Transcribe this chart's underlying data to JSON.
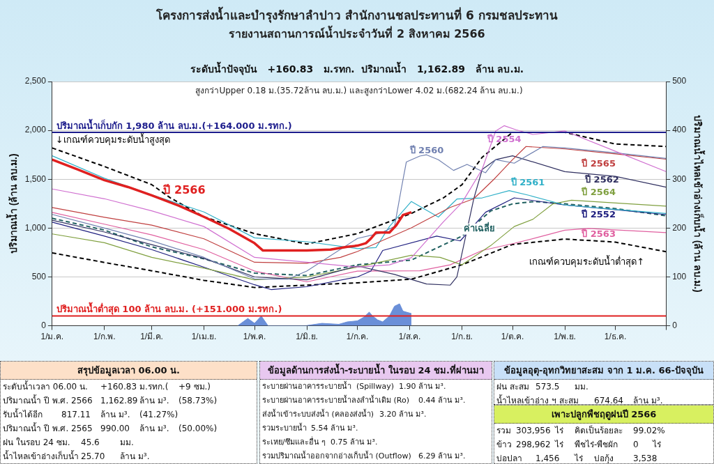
{
  "chart_data": [
    {
      "type": "line",
      "title": "โครงการส่งน้ำและบำรุงรักษาลำปาว สำนักงานชลประทานที่ 6 กรมชลประทาน",
      "subtitle": "รายงานสถานการณ์น้ำประจำวันที่ 2 สิงหาคม 2566",
      "ylabel": "ปริมาณน้ำ (ล้าน ลบ.ม.)",
      "y2label": "ปริมาณน้ำไหลเข้าอ่างเก็บน้ำ (ล้าน ลบ.ม.)",
      "annotations": [
        "ระดับน้ำปัจจุบัน   +160.83   ม.รทก.  ปริมาณน้ำ   1,162.89   ล้าน ลบ.ม.",
        "สูงกว่าUpper 0.18 ม.(35.72ล้าน ลบ.ม.) และสูงกว่าLower 4.02 ม.(682.24 ล้าน ลบ.ม.)"
      ],
      "xlim": [
        "--01-01",
        "--12-31"
      ],
      "xticks": [
        {
          "value": "--01-01",
          "label": "1/ม.ค."
        },
        {
          "value": "--02-01",
          "label": "1/ก.พ."
        },
        {
          "value": "--03-01",
          "label": "1/มี.ค."
        },
        {
          "value": "--04-01",
          "label": "1/เม.ย."
        },
        {
          "value": "--05-01",
          "label": "1/พ.ค."
        },
        {
          "value": "--06-01",
          "label": "1/มิ.ย."
        },
        {
          "value": "--07-01",
          "label": "1/ก.ค."
        },
        {
          "value": "--08-01",
          "label": "1/ส.ค."
        },
        {
          "value": "--09-01",
          "label": "1/ก.ย."
        },
        {
          "value": "--10-01",
          "label": "1/ต.ค."
        },
        {
          "value": "--11-01",
          "label": "1/พ.ย."
        },
        {
          "value": "--12-01",
          "label": "1/ธ.ค."
        },
        {
          "value": "--12-31",
          "label": null
        }
      ],
      "ylim": [
        0,
        2500
      ],
      "yticks": [
        0,
        500,
        {
          "value": 1000,
          "label": "1,000"
        },
        {
          "value": 1500,
          "label": "1,500"
        },
        {
          "value": 2000,
          "label": "2,000"
        },
        {
          "value": 2500,
          "label": "2,500"
        }
      ],
      "y2lim": [
        0,
        500
      ],
      "y2ticks": [
        0,
        100,
        200,
        300,
        400,
        500
      ],
      "grid": "y",
      "legend": false,
      "ref_lines": [
        {
          "axis": "y",
          "value": 1980,
          "label": "ปริมาณน้ำเก็บกัก 1,980 ล้าน ลบ.ม.(+164.000 ม.รทก.)",
          "color": "#1c1c8c"
        },
        {
          "axis": "y",
          "value": 100,
          "label": "ปริมาณน้ำต่ำสุด 100 ล้าน ลบ.ม. (+151.000 ม.รทก.)",
          "color": "#e02020"
        }
      ],
      "series": [
        {
          "name": "ปี 2566",
          "color": "#e02020",
          "x": [
            "--01-01",
            "--01-16",
            "--02-01",
            "--02-15",
            "--03-01",
            "--03-17",
            "--04-01",
            "--04-16",
            "--05-01",
            "--05-06",
            "--05-21",
            "--06-01",
            "--06-15",
            "--06-25",
            "--07-01",
            "--07-06",
            "--07-09",
            "--07-12",
            "--07-20",
            "--07-24",
            "--07-28",
            "--08-02"
          ],
          "values": [
            1700,
            1600,
            1490,
            1420,
            1335,
            1230,
            1115,
            992,
            845,
            770,
            770,
            770,
            780,
            808,
            820,
            845,
            893,
            954,
            954,
            1028,
            1133,
            1162
          ]
        },
        {
          "name": "ปี 2554",
          "color": "#d070d0",
          "x": [
            "--01-01",
            "--02-01",
            "--03-01",
            "--04-01",
            "--05-01",
            "--06-01",
            "--07-01",
            "--07-20",
            "--08-02",
            "--08-21",
            "--09-01",
            "--09-13",
            "--09-21",
            "--09-26",
            "--10-03",
            "--10-13",
            "--11-01",
            "--12-01",
            "--12-31"
          ],
          "values": [
            1400,
            1300,
            1176,
            1016,
            700,
            650,
            600,
            624,
            697,
            1064,
            1260,
            1603,
            1994,
            2048,
            2006,
            1958,
            1994,
            1786,
            1578
          ]
        },
        {
          "name": "ปี 2560",
          "color": "#7080b0",
          "x": [
            "--01-01",
            "--02-01",
            "--03-01",
            "--04-01",
            "--05-01",
            "--05-21",
            "--06-01",
            "--07-01",
            "--07-15",
            "--07-23",
            "--07-27",
            "--07-30",
            "--08-07",
            "--08-11",
            "--08-18",
            "--08-27",
            "--09-04",
            "--09-15",
            "--09-21",
            "--10-02",
            "--10-19",
            "--11-01",
            "--12-01",
            "--12-31"
          ],
          "values": [
            1140,
            1000,
            870,
            700,
            480,
            478,
            560,
            894,
            950,
            1016,
            1400,
            1676,
            1737,
            1750,
            1700,
            1590,
            1652,
            1566,
            1700,
            1664,
            1835,
            1820,
            1770,
            1713
          ]
        },
        {
          "name": "ปี 2565",
          "color": "#c04040",
          "x": [
            "--01-01",
            "--02-01",
            "--03-01",
            "--04-01",
            "--05-01",
            "--06-01",
            "--06-21",
            "--07-01",
            "--08-02",
            "--08-25",
            "--09-08",
            "--09-20",
            "--10-01",
            "--10-09",
            "--11-01",
            "--12-01",
            "--12-31"
          ],
          "values": [
            1210,
            1110,
            1030,
            890,
            650,
            640,
            700,
            760,
            1003,
            1211,
            1300,
            1500,
            1700,
            1835,
            1810,
            1760,
            1705
          ]
        },
        {
          "name": "ปี 2562",
          "color": "#303060",
          "x": [
            "--01-01",
            "--02-01",
            "--03-01",
            "--04-01",
            "--05-01",
            "--06-01",
            "--07-01",
            "--07-23",
            "--08-11",
            "--08-25",
            "--08-29",
            "--09-03",
            "--09-08",
            "--09-13",
            "--09-21",
            "--10-01",
            "--11-01",
            "--12-01",
            "--12-31"
          ],
          "values": [
            1080,
            960,
            830,
            690,
            500,
            470,
            612,
            526,
            428,
            416,
            500,
            900,
            1300,
            1600,
            1700,
            1740,
            1578,
            1529,
            1419
          ]
        },
        {
          "name": "ปี 2561",
          "color": "#30b0c8",
          "x": [
            "--01-01",
            "--02-01",
            "--03-01",
            "--04-01",
            "--05-01",
            "--06-01",
            "--07-01",
            "--07-12",
            "--07-20",
            "--08-02",
            "--08-18",
            "--08-29",
            "--09-13",
            "--09-29",
            "--10-11",
            "--11-01",
            "--12-01",
            "--12-31"
          ],
          "values": [
            1740,
            1510,
            1340,
            1165,
            900,
            860,
            790,
            800,
            1016,
            1272,
            1113,
            1297,
            1309,
            1383,
            1334,
            1236,
            1190,
            1150
          ]
        },
        {
          "name": "ปี 2564",
          "color": "#80a040",
          "x": [
            "--01-01",
            "--02-01",
            "--03-01",
            "--04-01",
            "--05-01",
            "--06-01",
            "--07-01",
            "--08-02",
            "--08-19",
            "--09-01",
            "--09-18",
            "--10-02",
            "--10-13",
            "--10-25",
            "--11-05",
            "--12-31"
          ],
          "values": [
            940,
            850,
            700,
            590,
            470,
            500,
            600,
            722,
            700,
            624,
            820,
            1016,
            1089,
            1248,
            1285,
            1224
          ]
        },
        {
          "name": "ปี 2552",
          "color": "#202080",
          "x": [
            "--01-01",
            "--02-01",
            "--03-01",
            "--04-01",
            "--05-01",
            "--05-11",
            "--06-01",
            "--07-01",
            "--07-09",
            "--07-16",
            "--08-17",
            "--08-31",
            "--09-15",
            "--10-02",
            "--11-01",
            "--12-31"
          ],
          "values": [
            1060,
            918,
            780,
            600,
            420,
            370,
            400,
            500,
            560,
            771,
            918,
            869,
            1162,
            1309,
            1236,
            1138
          ]
        },
        {
          "name": "ปี 2563",
          "color": "#e060a0",
          "x": [
            "--01-01",
            "--02-01",
            "--03-01",
            "--04-01",
            "--05-01",
            "--06-01",
            "--07-01",
            "--08-07",
            "--08-25",
            "--09-13",
            "--10-02",
            "--10-16",
            "--11-01",
            "--11-15",
            "--12-31"
          ],
          "values": [
            1160,
            1040,
            930,
            780,
            560,
            450,
            560,
            563,
            624,
            771,
            844,
            905,
            979,
            996,
            954
          ]
        },
        {
          "name": "ค่าเฉลี่ย",
          "color": "#206060",
          "line_style": "dashed",
          "x": [
            "--01-01",
            "--02-01",
            "--03-01",
            "--04-01",
            "--05-01",
            "--06-01",
            "--07-01",
            "--08-02",
            "--09-01",
            "--09-18",
            "--10-01",
            "--10-14",
            "--11-01",
            "--12-01",
            "--12-31"
          ],
          "values": [
            1100,
            979,
            808,
            685,
            539,
            514,
            624,
            673,
            918,
            1175,
            1248,
            1272,
            1248,
            1199,
            1126
          ]
        },
        {
          "name": "↓เกณฑ์ควบคุมระดับน้ำสูงสุด",
          "color": "#000000",
          "line_style": "dashed",
          "x": [
            "--01-01",
            "--02-01",
            "--03-01",
            "--03-12",
            "--04-01",
            "--05-01",
            "--06-01",
            "--07-01",
            "--08-02",
            "--08-21",
            "--09-01",
            "--09-13",
            "--10-01",
            "--11-01",
            "--12-01",
            "--12-31"
          ],
          "values": [
            1820,
            1630,
            1445,
            1310,
            1115,
            943,
            837,
            943,
            1150,
            1309,
            1444,
            1725,
            1980,
            1980,
            1860,
            1835
          ]
        },
        {
          "name": "เกณฑ์ควบคุมระดับน้ำต่ำสุด↑",
          "color": "#000000",
          "line_style": "dashed",
          "x": [
            "--01-01",
            "--02-01",
            "--03-01",
            "--04-01",
            "--05-01",
            "--06-01",
            "--07-01",
            "--08-02",
            "--09-01",
            "--10-01",
            "--11-01",
            "--12-01",
            "--12-31"
          ],
          "values": [
            746,
            648,
            563,
            465,
            392,
            416,
            440,
            477,
            624,
            832,
            888,
            856,
            758
          ]
        },
        {
          "type": "area",
          "axis": "y2",
          "color": "#6a8fd8",
          "x": [
            "--04-21",
            "--04-27",
            "--05-01",
            "--05-05",
            "--05-09",
            "--05-31",
            "--06-10",
            "--06-20",
            "--06-25",
            "--07-01",
            "--07-05",
            "--07-08",
            "--07-10",
            "--07-13",
            "--07-16",
            "--07-20",
            "--07-23",
            "--07-26",
            "--07-28",
            "--07-30",
            "--08-02"
          ],
          "values": [
            0,
            15,
            5,
            20,
            0,
            0,
            5,
            3,
            8,
            10,
            18,
            28,
            20,
            12,
            8,
            20,
            40,
            45,
            30,
            28,
            25
          ]
        }
      ]
    },
    {
      "type": "other",
      "title": "สรุปข้อมูลเวลา 06.00 น.",
      "annotations": [
        "ระดับน้ำเวลา 06.00 น.\t+160.83\tม.รทก.(\t+9 ซม.)",
        "ปริมาณน้ำ ปี พ.ศ. 2566\t1,162.89\tล้าน ม³.\t(58.73%)",
        "รับน้ำได้อีก\t817.11\tล้าน ม³.\t(41.27%)",
        "ปริมาณน้ำ ปี พ.ศ. 2565\t990.00\tล้าน ม³.\t(50.00%)",
        "ฝน ในรอบ 24 ซม.\t45.6\tมม.",
        "น้ำไหลเข้าอ่างเก็บน้ำ\t25.70\tล้าน ม³."
      ]
    },
    {
      "type": "other",
      "title": "ข้อมูลด้านการส่งน้ำ-ระบายน้ำ ในรอบ 24 ชม.ที่ผ่านมา",
      "annotations": [
        "ระบายผ่านอาคารระบายน้ำ  (Spillway)\t1.90\tล้าน ม³.",
        "ระบายผ่านอาคารระบายน้ำลงลำน้ำเดิม (Ro)\t0.44\tล้าน ม³.",
        "ส่งน้ำเข้าระบบส่งน้ำ (คลองส่งน้ำ)\t3.20\tล้าน ม³.",
        "รวมระบายน้ำ\t5.54\tล้าน ม³.",
        "ระเหย/ซึมและอื่น ๆ\t0.75\tล้าน ม³.",
        "รวมปริมาณน้ำออกจากอ่างเก็บน้ำ (Outflow)\t6.29\tล้าน ม³."
      ]
    },
    {
      "type": "other",
      "title": "ข้อมูลอุตุ-อุทกวิทยาสะสม จาก 1 ม.ค. 66-ปัจจุบัน",
      "annotations": [
        "ฝน สะสม\t573.5\tมม.",
        "น้ำไหลเข้าอ่าง ฯ สะสม\t674.64\tล้าน ม³."
      ]
    },
    {
      "type": "other",
      "title": "เพาะปลูกพืชฤดูฝนปี 2566",
      "annotations": [
        "รวม\t303,956\tไร่\tคิดเป็นร้อยละ\t99.02%",
        "ข้าว\t298,962\tไร่\tพืชไร่-พืชผัก\t0\tไร่",
        "บ่อปลา\t1,456\tไร่\tบ่อกุ้ง\t3,538"
      ]
    }
  ]
}
